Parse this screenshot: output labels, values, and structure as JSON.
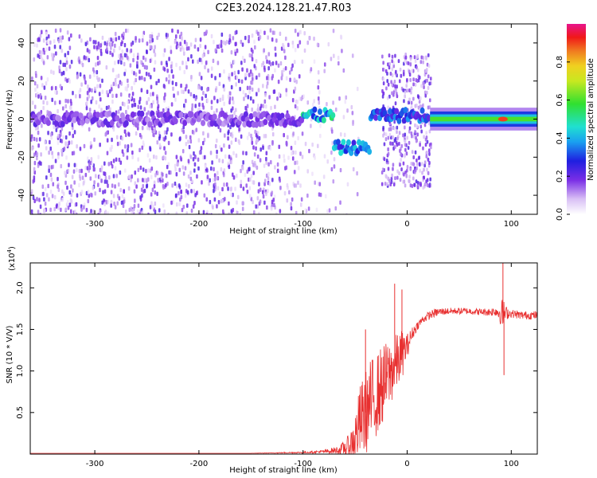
{
  "title": "C2E3.2024.128.21.47.R03",
  "colors": {
    "snr_line": "#e83030",
    "scatter_dark": "#5a10d8",
    "scatter_light": "#c9a6f2",
    "axis": "#000000"
  },
  "chart_data": [
    {
      "type": "heatmap",
      "title": "C2E3.2024.128.21.47.R03",
      "xlabel": "Height of straight line (km)",
      "ylabel": "Frequency (Hz)",
      "xlim": [
        -362,
        125
      ],
      "ylim": [
        -50,
        50
      ],
      "xticks": [
        -300,
        -200,
        -100,
        0,
        100
      ],
      "yticks": [
        -40,
        -20,
        0,
        20,
        40
      ],
      "colorbar": {
        "label": "Normalized spectral amplitude",
        "range": [
          0.0,
          1.0
        ],
        "ticks": [
          0.0,
          0.2,
          0.4,
          0.6,
          0.8
        ],
        "tick_labels": [
          "0.0",
          "0.2",
          "0.4",
          "0.6",
          "0.8"
        ],
        "colormap": "rainbow (white, violet, blue, cyan, green, yellow, red, magenta)"
      },
      "signal_track": {
        "segments": [
          {
            "x_start": -362,
            "x_end": -100,
            "freq": 0,
            "amplitude": 0.2
          },
          {
            "x_start": -100,
            "x_end": -70,
            "freq": 2,
            "amplitude": 0.5
          },
          {
            "x_start": -70,
            "x_end": -35,
            "freq": -15,
            "amplitude": 0.45
          },
          {
            "x_start": -35,
            "x_end": 22,
            "freq": 2,
            "amplitude": 0.35
          },
          {
            "x_start": 22,
            "x_end": 125,
            "freq": 0,
            "amplitude": 0.6
          }
        ],
        "peak": {
          "x": 92,
          "freq": 0,
          "amplitude": 0.9
        }
      },
      "noise_region": {
        "x_start": -362,
        "x_end": -80,
        "freq_range": [
          -50,
          48
        ]
      },
      "noise_region_2": {
        "x_start": -25,
        "x_end": 22,
        "freq_range": [
          -35,
          35
        ]
      }
    },
    {
      "type": "line",
      "xlabel": "Height of straight line (km)",
      "ylabel": "SNR (10 * V/V)",
      "y_multiplier": "(x10",
      "y_multiplier_exp": "4",
      "y_multiplier_close": ")",
      "xlim": [
        -362,
        125
      ],
      "ylim": [
        0,
        2.3
      ],
      "xticks": [
        -300,
        -200,
        -100,
        0,
        100
      ],
      "yticks": [
        0.5,
        1.0,
        1.5,
        2.0
      ],
      "ytick_labels": [
        "0.5",
        "1.0",
        "1.5",
        "2.0"
      ],
      "series": [
        {
          "x": [
            -362,
            -300,
            -200,
            -150,
            -100,
            -80,
            -65,
            -55,
            -50,
            -45,
            -40,
            -35,
            -30,
            -25,
            -20,
            -15,
            -10,
            -5,
            0,
            5,
            10,
            15,
            20,
            25,
            30,
            40,
            50,
            60,
            70,
            80,
            85,
            90,
            92,
            95,
            100,
            110,
            125
          ],
          "values": [
            0.01,
            0.01,
            0.01,
            0.01,
            0.02,
            0.03,
            0.05,
            0.1,
            0.2,
            0.4,
            0.5,
            0.6,
            0.7,
            0.8,
            0.9,
            1.0,
            1.1,
            1.2,
            1.3,
            1.45,
            1.55,
            1.62,
            1.66,
            1.69,
            1.71,
            1.72,
            1.72,
            1.72,
            1.71,
            1.71,
            1.72,
            1.7,
            1.68,
            1.7,
            1.69,
            1.67,
            1.67
          ],
          "noise_amplitude": [
            0.0,
            0.0,
            0.0,
            0.0,
            0.01,
            0.02,
            0.05,
            0.15,
            0.3,
            0.45,
            0.5,
            0.55,
            0.5,
            0.5,
            0.45,
            0.4,
            0.35,
            0.3,
            0.15,
            0.08,
            0.05,
            0.05,
            0.05,
            0.05,
            0.05,
            0.04,
            0.04,
            0.04,
            0.04,
            0.05,
            0.06,
            0.15,
            0.2,
            0.08,
            0.05,
            0.05,
            0.05
          ],
          "spikes": [
            {
              "x": -40,
              "y": 1.5
            },
            {
              "x": -12,
              "y": 2.05
            },
            {
              "x": -5,
              "y": 1.98
            },
            {
              "x": 92,
              "y": 2.3
            },
            {
              "x": 93,
              "y": 0.95
            }
          ]
        }
      ]
    }
  ]
}
